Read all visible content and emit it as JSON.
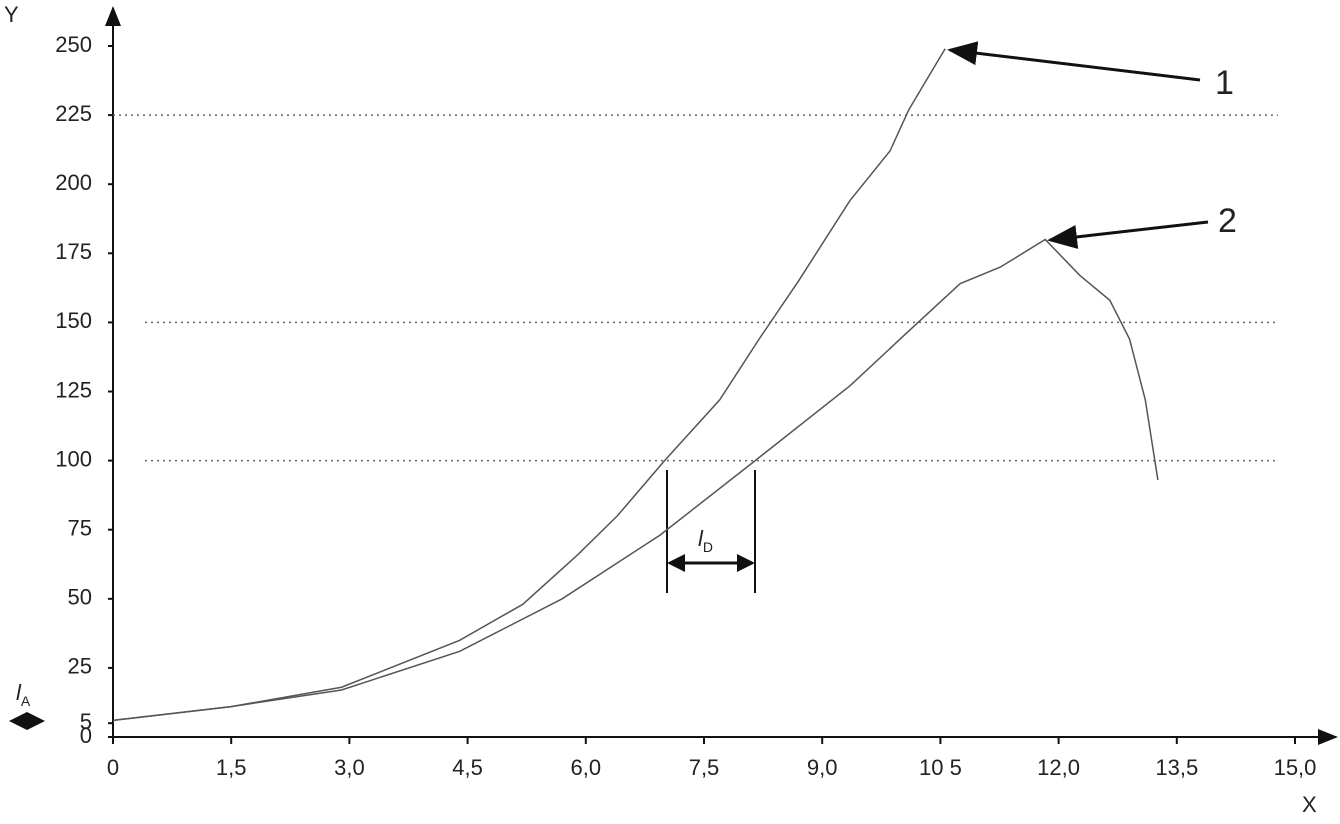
{
  "chart_data": {
    "type": "line",
    "x_label": "X",
    "y_label": "Y",
    "xlim": [
      0,
      15.6
    ],
    "ylim": [
      0,
      259
    ],
    "xticks": [
      0,
      {
        "value": 1.5,
        "label": "1,5"
      },
      {
        "value": 3,
        "label": "3,0"
      },
      {
        "value": 4.5,
        "label": "4,5"
      },
      {
        "value": 6,
        "label": "6,0"
      },
      {
        "value": 7.5,
        "label": "7,5"
      },
      {
        "value": 9,
        "label": "9,0"
      },
      {
        "value": 10.5,
        "label": "10 5"
      },
      {
        "value": 12,
        "label": "12,0"
      },
      {
        "value": 13.5,
        "label": "13,5"
      },
      {
        "value": 15,
        "label": "15,0"
      }
    ],
    "yticks": [
      0,
      5,
      25,
      50,
      75,
      100,
      125,
      150,
      175,
      200,
      225,
      250
    ],
    "reference_lines": [
      100,
      150,
      225
    ],
    "series": [
      {
        "name": "1",
        "color": "#555555",
        "x": [
          0,
          1.5,
          2.9,
          4.4,
          5.2,
          5.9,
          6.4,
          7.0,
          7.7,
          8.2,
          8.7,
          9.35,
          9.86,
          10.1,
          10.56
        ],
        "values": [
          6,
          11,
          18,
          35,
          48,
          66,
          80,
          100,
          122,
          144,
          165,
          194,
          212,
          227,
          249
        ]
      },
      {
        "name": "2",
        "color": "#555555",
        "x": [
          0,
          1.5,
          2.9,
          4.4,
          5.7,
          6.94,
          8.15,
          9.35,
          9.99,
          10.75,
          11.26,
          11.83,
          12.27,
          12.65,
          12.9,
          13.1,
          13.26
        ],
        "values": [
          6,
          11,
          17,
          31,
          50,
          73,
          100,
          127,
          144,
          164,
          170,
          180,
          167,
          158,
          144,
          122,
          93
        ]
      }
    ],
    "annotations": {
      "distance_d": "l",
      "distance_d_sub": "D",
      "distance_a": "l",
      "distance_a_sub": "A"
    }
  }
}
